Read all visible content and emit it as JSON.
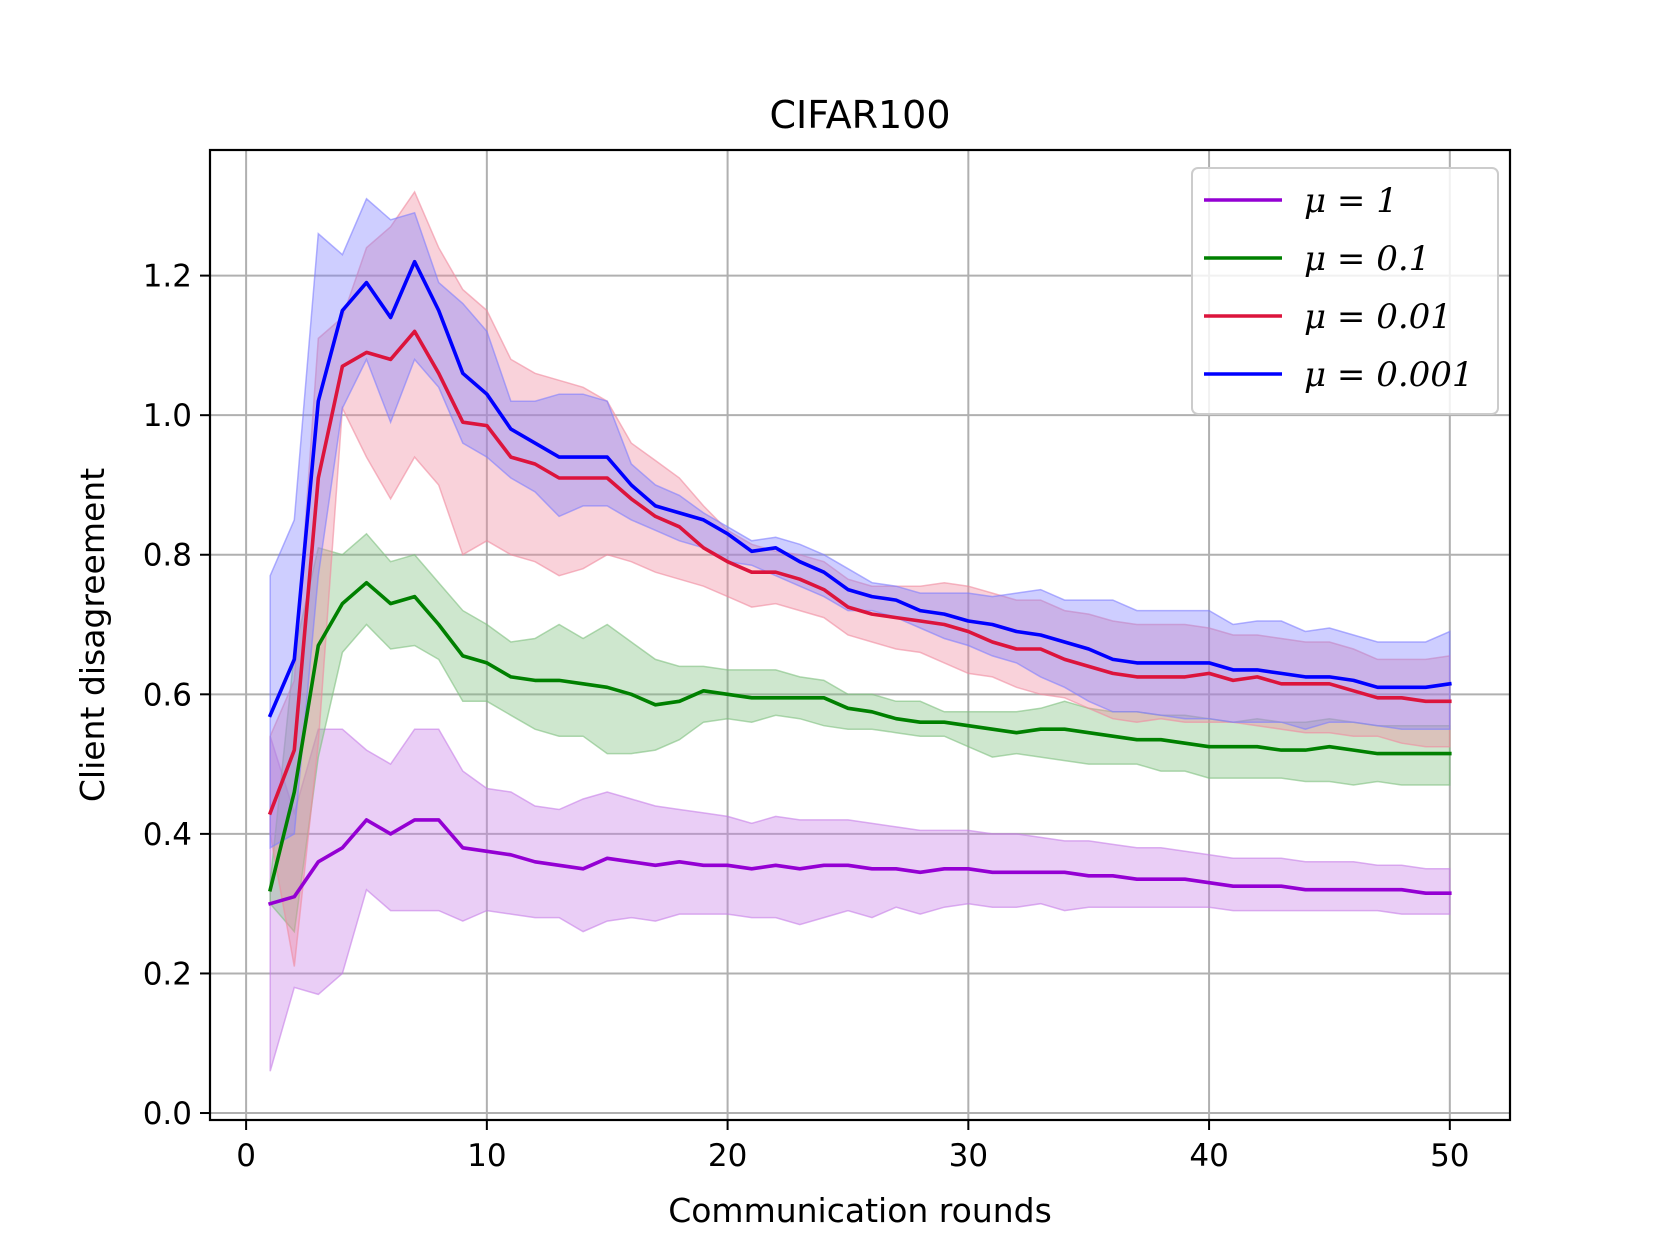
{
  "chart_data": {
    "type": "line",
    "title": "CIFAR100",
    "xlabel": "Communication rounds",
    "ylabel": "Client disagreement",
    "xlim": [
      -1.5,
      52.5
    ],
    "ylim": [
      -0.01,
      1.38
    ],
    "xticks": [
      0,
      10,
      20,
      30,
      40,
      50
    ],
    "xtick_labels": [
      "0",
      "10",
      "20",
      "30",
      "40",
      "50"
    ],
    "yticks": [
      0.0,
      0.2,
      0.4,
      0.6,
      0.8,
      1.0,
      1.2
    ],
    "ytick_labels": [
      "0.0",
      "0.2",
      "0.4",
      "0.6",
      "0.8",
      "1.0",
      "1.2"
    ],
    "grid": true,
    "legend_position": "top-right",
    "x": [
      1,
      2,
      3,
      4,
      5,
      6,
      7,
      8,
      9,
      10,
      11,
      12,
      13,
      14,
      15,
      16,
      17,
      18,
      19,
      20,
      21,
      22,
      23,
      24,
      25,
      26,
      27,
      28,
      29,
      30,
      31,
      32,
      33,
      34,
      35,
      36,
      37,
      38,
      39,
      40,
      41,
      42,
      43,
      44,
      45,
      46,
      47,
      48,
      49,
      50
    ],
    "series": [
      {
        "name": "μ = 1",
        "color": "#9400d3",
        "band_color": "#c77ee8",
        "values": [
          0.3,
          0.31,
          0.36,
          0.38,
          0.42,
          0.4,
          0.42,
          0.42,
          0.38,
          0.375,
          0.37,
          0.36,
          0.355,
          0.35,
          0.365,
          0.36,
          0.355,
          0.36,
          0.355,
          0.355,
          0.35,
          0.355,
          0.35,
          0.355,
          0.355,
          0.35,
          0.35,
          0.345,
          0.35,
          0.35,
          0.345,
          0.345,
          0.345,
          0.345,
          0.34,
          0.34,
          0.335,
          0.335,
          0.335,
          0.33,
          0.325,
          0.325,
          0.325,
          0.32,
          0.32,
          0.32,
          0.32,
          0.32,
          0.315,
          0.315
        ],
        "lower": [
          0.06,
          0.18,
          0.17,
          0.2,
          0.32,
          0.29,
          0.29,
          0.29,
          0.275,
          0.29,
          0.285,
          0.28,
          0.28,
          0.26,
          0.275,
          0.28,
          0.275,
          0.285,
          0.285,
          0.285,
          0.28,
          0.28,
          0.27,
          0.28,
          0.29,
          0.28,
          0.295,
          0.285,
          0.295,
          0.3,
          0.295,
          0.295,
          0.3,
          0.29,
          0.295,
          0.295,
          0.295,
          0.295,
          0.295,
          0.295,
          0.29,
          0.29,
          0.29,
          0.29,
          0.29,
          0.29,
          0.29,
          0.285,
          0.285,
          0.285
        ],
        "upper": [
          0.54,
          0.43,
          0.55,
          0.55,
          0.52,
          0.5,
          0.55,
          0.55,
          0.49,
          0.465,
          0.46,
          0.44,
          0.435,
          0.45,
          0.46,
          0.45,
          0.44,
          0.435,
          0.43,
          0.425,
          0.415,
          0.425,
          0.42,
          0.42,
          0.42,
          0.415,
          0.41,
          0.405,
          0.405,
          0.405,
          0.4,
          0.4,
          0.395,
          0.39,
          0.39,
          0.385,
          0.38,
          0.38,
          0.375,
          0.37,
          0.365,
          0.365,
          0.365,
          0.36,
          0.36,
          0.36,
          0.355,
          0.355,
          0.35,
          0.35
        ]
      },
      {
        "name": "μ = 0.1",
        "color": "#008000",
        "band_color": "#7fc07f",
        "values": [
          0.32,
          0.46,
          0.67,
          0.73,
          0.76,
          0.73,
          0.74,
          0.7,
          0.655,
          0.645,
          0.625,
          0.62,
          0.62,
          0.615,
          0.61,
          0.6,
          0.585,
          0.59,
          0.605,
          0.6,
          0.595,
          0.595,
          0.595,
          0.595,
          0.58,
          0.575,
          0.565,
          0.56,
          0.56,
          0.555,
          0.55,
          0.545,
          0.55,
          0.55,
          0.545,
          0.54,
          0.535,
          0.535,
          0.53,
          0.525,
          0.525,
          0.525,
          0.52,
          0.52,
          0.525,
          0.52,
          0.515,
          0.515,
          0.515,
          0.515
        ],
        "lower": [
          0.3,
          0.26,
          0.51,
          0.66,
          0.7,
          0.665,
          0.67,
          0.65,
          0.59,
          0.59,
          0.57,
          0.55,
          0.54,
          0.54,
          0.515,
          0.515,
          0.52,
          0.535,
          0.56,
          0.565,
          0.56,
          0.57,
          0.565,
          0.555,
          0.55,
          0.55,
          0.545,
          0.54,
          0.54,
          0.525,
          0.51,
          0.515,
          0.51,
          0.505,
          0.5,
          0.5,
          0.5,
          0.49,
          0.49,
          0.48,
          0.48,
          0.48,
          0.48,
          0.475,
          0.475,
          0.47,
          0.475,
          0.47,
          0.47,
          0.47
        ],
        "upper": [
          0.33,
          0.66,
          0.81,
          0.8,
          0.83,
          0.79,
          0.8,
          0.76,
          0.72,
          0.7,
          0.675,
          0.68,
          0.7,
          0.68,
          0.7,
          0.675,
          0.65,
          0.64,
          0.64,
          0.635,
          0.635,
          0.635,
          0.625,
          0.62,
          0.6,
          0.6,
          0.59,
          0.59,
          0.575,
          0.575,
          0.575,
          0.575,
          0.58,
          0.59,
          0.58,
          0.575,
          0.575,
          0.57,
          0.57,
          0.565,
          0.56,
          0.565,
          0.56,
          0.56,
          0.565,
          0.56,
          0.555,
          0.555,
          0.555,
          0.555
        ]
      },
      {
        "name": "μ = 0.01",
        "color": "#dc143c",
        "band_color": "#f08a9e",
        "values": [
          0.43,
          0.52,
          0.91,
          1.07,
          1.09,
          1.08,
          1.12,
          1.06,
          0.99,
          0.985,
          0.94,
          0.93,
          0.91,
          0.91,
          0.91,
          0.88,
          0.855,
          0.84,
          0.81,
          0.79,
          0.775,
          0.775,
          0.765,
          0.75,
          0.725,
          0.715,
          0.71,
          0.705,
          0.7,
          0.69,
          0.675,
          0.665,
          0.665,
          0.65,
          0.64,
          0.63,
          0.625,
          0.625,
          0.625,
          0.63,
          0.62,
          0.625,
          0.615,
          0.615,
          0.615,
          0.605,
          0.595,
          0.595,
          0.59,
          0.59
        ],
        "lower": [
          0.4,
          0.21,
          0.53,
          1.01,
          0.94,
          0.88,
          0.94,
          0.9,
          0.8,
          0.82,
          0.8,
          0.79,
          0.77,
          0.78,
          0.8,
          0.79,
          0.775,
          0.765,
          0.755,
          0.74,
          0.725,
          0.73,
          0.72,
          0.71,
          0.685,
          0.675,
          0.665,
          0.66,
          0.645,
          0.63,
          0.625,
          0.61,
          0.6,
          0.595,
          0.58,
          0.565,
          0.56,
          0.565,
          0.56,
          0.56,
          0.56,
          0.555,
          0.55,
          0.545,
          0.545,
          0.54,
          0.54,
          0.53,
          0.525,
          0.525
        ],
        "upper": [
          0.54,
          0.62,
          1.11,
          1.14,
          1.24,
          1.27,
          1.32,
          1.24,
          1.18,
          1.15,
          1.08,
          1.06,
          1.05,
          1.04,
          1.02,
          0.96,
          0.935,
          0.91,
          0.87,
          0.835,
          0.815,
          0.805,
          0.8,
          0.79,
          0.765,
          0.755,
          0.755,
          0.755,
          0.76,
          0.755,
          0.745,
          0.735,
          0.735,
          0.72,
          0.715,
          0.705,
          0.7,
          0.7,
          0.7,
          0.695,
          0.685,
          0.685,
          0.68,
          0.675,
          0.675,
          0.665,
          0.65,
          0.65,
          0.65,
          0.655
        ]
      },
      {
        "name": "μ = 0.001",
        "color": "#0000ff",
        "band_color": "#7f7fff",
        "values": [
          0.57,
          0.65,
          1.02,
          1.15,
          1.19,
          1.14,
          1.22,
          1.15,
          1.06,
          1.03,
          0.98,
          0.96,
          0.94,
          0.94,
          0.94,
          0.9,
          0.87,
          0.86,
          0.85,
          0.83,
          0.805,
          0.81,
          0.79,
          0.775,
          0.75,
          0.74,
          0.735,
          0.72,
          0.715,
          0.705,
          0.7,
          0.69,
          0.685,
          0.675,
          0.665,
          0.65,
          0.645,
          0.645,
          0.645,
          0.645,
          0.635,
          0.635,
          0.63,
          0.625,
          0.625,
          0.62,
          0.61,
          0.61,
          0.61,
          0.615
        ],
        "lower": [
          0.38,
          0.4,
          0.77,
          1.01,
          1.08,
          0.99,
          1.08,
          1.04,
          0.96,
          0.94,
          0.91,
          0.89,
          0.855,
          0.87,
          0.87,
          0.85,
          0.835,
          0.82,
          0.81,
          0.79,
          0.785,
          0.77,
          0.755,
          0.74,
          0.72,
          0.72,
          0.71,
          0.695,
          0.68,
          0.67,
          0.655,
          0.645,
          0.625,
          0.61,
          0.59,
          0.575,
          0.575,
          0.57,
          0.565,
          0.565,
          0.56,
          0.56,
          0.56,
          0.55,
          0.56,
          0.56,
          0.555,
          0.55,
          0.55,
          0.55
        ],
        "upper": [
          0.77,
          0.85,
          1.26,
          1.23,
          1.31,
          1.28,
          1.29,
          1.19,
          1.16,
          1.12,
          1.02,
          1.02,
          1.03,
          1.03,
          1.02,
          0.93,
          0.9,
          0.885,
          0.86,
          0.84,
          0.82,
          0.825,
          0.815,
          0.8,
          0.78,
          0.76,
          0.755,
          0.745,
          0.745,
          0.745,
          0.74,
          0.745,
          0.75,
          0.735,
          0.735,
          0.735,
          0.72,
          0.72,
          0.72,
          0.72,
          0.7,
          0.705,
          0.705,
          0.69,
          0.695,
          0.685,
          0.675,
          0.675,
          0.675,
          0.69
        ]
      }
    ]
  }
}
